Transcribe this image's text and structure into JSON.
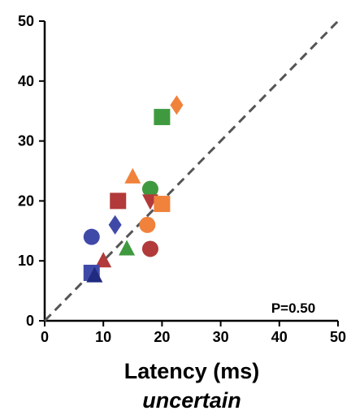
{
  "chart_data": {
    "type": "scatter",
    "title": "",
    "xlabel": "Latency (ms)",
    "subtitle": "uncertain",
    "ylabel": "",
    "xlim": [
      0,
      50
    ],
    "ylim": [
      0,
      50
    ],
    "xticks": [
      "0",
      "10",
      "20",
      "30",
      "40",
      "50"
    ],
    "yticks": [
      "0",
      "10",
      "20",
      "30",
      "40",
      "50"
    ],
    "grid": false,
    "reference_line": {
      "style": "dashed",
      "color": "#555555",
      "from": [
        0,
        0
      ],
      "to": [
        50,
        50
      ]
    },
    "annotation": "P=0.50",
    "points": [
      {
        "x": 20,
        "y": 34,
        "shape": "square",
        "color": "#3f9a3f"
      },
      {
        "x": 22.5,
        "y": 36,
        "shape": "diamond",
        "color": "#f0823c"
      },
      {
        "x": 15,
        "y": 24,
        "shape": "triangle",
        "color": "#f0823c"
      },
      {
        "x": 18,
        "y": 22,
        "shape": "circle",
        "color": "#3f9a3f"
      },
      {
        "x": 12.5,
        "y": 20,
        "shape": "square",
        "color": "#b23a3a"
      },
      {
        "x": 18,
        "y": 20,
        "shape": "triangle-down",
        "color": "#b23a3a"
      },
      {
        "x": 20,
        "y": 19.5,
        "shape": "square",
        "color": "#f0823c"
      },
      {
        "x": 17.5,
        "y": 16,
        "shape": "circle",
        "color": "#f0823c"
      },
      {
        "x": 12,
        "y": 16,
        "shape": "diamond",
        "color": "#3f4aa8"
      },
      {
        "x": 8,
        "y": 14,
        "shape": "circle",
        "color": "#3f4aa8"
      },
      {
        "x": 14,
        "y": 12,
        "shape": "triangle",
        "color": "#3f9a3f"
      },
      {
        "x": 18,
        "y": 12,
        "shape": "circle",
        "color": "#b23a3a"
      },
      {
        "x": 10,
        "y": 10,
        "shape": "triangle",
        "color": "#b23a3a"
      },
      {
        "x": 8,
        "y": 8,
        "shape": "square",
        "color": "#3f4aa8"
      },
      {
        "x": 8.5,
        "y": 7.5,
        "shape": "triangle",
        "color": "#1f2a80"
      }
    ]
  }
}
